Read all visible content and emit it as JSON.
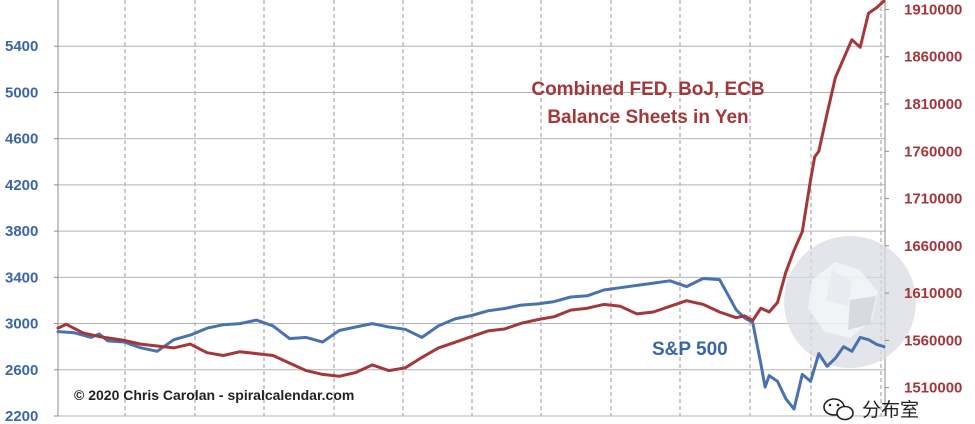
{
  "colors": {
    "sp500": "#4a72b0",
    "balance": "#a4373a",
    "grid_dash": "#9a9a9a",
    "axis": "#8c8c8c"
  },
  "chart_data": {
    "type": "line",
    "grid": true,
    "xlim": [
      0,
      100
    ],
    "left_axis": {
      "ticks": [
        2200,
        2600,
        3000,
        3400,
        3800,
        4200,
        4600,
        5000,
        5400
      ],
      "tick_labels": [
        "2200",
        "2600",
        "3000",
        "3400",
        "3800",
        "4200",
        "4600",
        "5000",
        "5400"
      ],
      "range": [
        2200,
        5800
      ]
    },
    "right_axis": {
      "ticks": [
        1510000,
        1560000,
        1610000,
        1660000,
        1710000,
        1760000,
        1810000,
        1860000,
        1910000
      ],
      "tick_labels": [
        "1510000",
        "1560000",
        "1610000",
        "1660000",
        "1710000",
        "1760000",
        "1810000",
        "1860000",
        "1910000"
      ],
      "range": [
        1480000,
        1920000
      ]
    },
    "series": [
      {
        "name": "S&P 500",
        "axis": "left",
        "x": [
          0,
          2,
          4,
          5,
          6,
          8,
          10,
          12,
          14,
          16,
          18,
          20,
          22,
          24,
          26,
          28,
          30,
          32,
          34,
          36,
          38,
          40,
          42,
          44,
          46,
          48,
          50,
          52,
          54,
          56,
          58,
          60,
          62,
          64,
          66,
          68,
          70,
          72,
          74,
          76,
          78,
          80,
          81,
          82,
          83,
          84,
          85,
          85.5,
          86,
          87,
          88,
          89,
          90,
          91,
          92,
          93,
          94,
          95,
          96,
          97,
          98,
          99,
          100
        ],
        "values": [
          2930,
          2920,
          2880,
          2910,
          2850,
          2840,
          2790,
          2760,
          2860,
          2900,
          2960,
          2990,
          3000,
          3030,
          2980,
          2870,
          2880,
          2840,
          2940,
          2970,
          3000,
          2970,
          2950,
          2880,
          2980,
          3040,
          3070,
          3110,
          3130,
          3160,
          3170,
          3190,
          3230,
          3240,
          3290,
          3310,
          3330,
          3350,
          3370,
          3320,
          3390,
          3380,
          3250,
          3120,
          3050,
          3010,
          2650,
          2450,
          2550,
          2500,
          2350,
          2260,
          2560,
          2500,
          2740,
          2630,
          2700,
          2800,
          2760,
          2880,
          2860,
          2820,
          2800
        ]
      },
      {
        "name": "Combined FED, BoJ, ECB Balance Sheets in Yen",
        "axis": "right",
        "x": [
          0,
          1,
          3,
          5,
          8,
          10,
          12,
          14,
          16,
          18,
          20,
          22,
          24,
          26,
          28,
          30,
          32,
          34,
          36,
          38,
          40,
          42,
          44,
          46,
          48,
          50,
          52,
          54,
          56,
          58,
          60,
          62,
          64,
          66,
          68,
          70,
          72,
          74,
          76,
          78,
          80,
          82,
          83,
          84,
          85,
          86,
          87,
          88,
          89,
          90,
          91,
          91.5,
          92,
          93,
          94,
          95,
          96,
          97,
          98,
          99,
          100
        ],
        "values": [
          1573000,
          1577000,
          1568000,
          1564000,
          1560000,
          1556000,
          1554000,
          1552000,
          1556000,
          1547000,
          1544000,
          1548000,
          1546000,
          1544000,
          1536000,
          1528000,
          1524000,
          1522000,
          1526000,
          1534000,
          1528000,
          1531000,
          1542000,
          1552000,
          1558000,
          1564000,
          1570000,
          1572000,
          1578000,
          1582000,
          1585000,
          1592000,
          1594000,
          1598000,
          1596000,
          1588000,
          1590000,
          1596000,
          1602000,
          1598000,
          1590000,
          1584000,
          1586000,
          1581000,
          1594000,
          1590000,
          1600000,
          1632000,
          1655000,
          1675000,
          1730000,
          1754000,
          1760000,
          1800000,
          1838000,
          1858000,
          1878000,
          1870000,
          1906000,
          1912000,
          1922000
        ]
      }
    ],
    "annotations": {
      "balance_label_line1": "Combined FED, BoJ, ECB",
      "balance_label_line2": "Balance Sheets in Yen",
      "sp500_label": "S&P 500",
      "credit": "© 2020 Chris Carolan - spiralcalendar.com"
    }
  },
  "watermark": {
    "text": "分布室",
    "icon": "wechat-icon"
  }
}
